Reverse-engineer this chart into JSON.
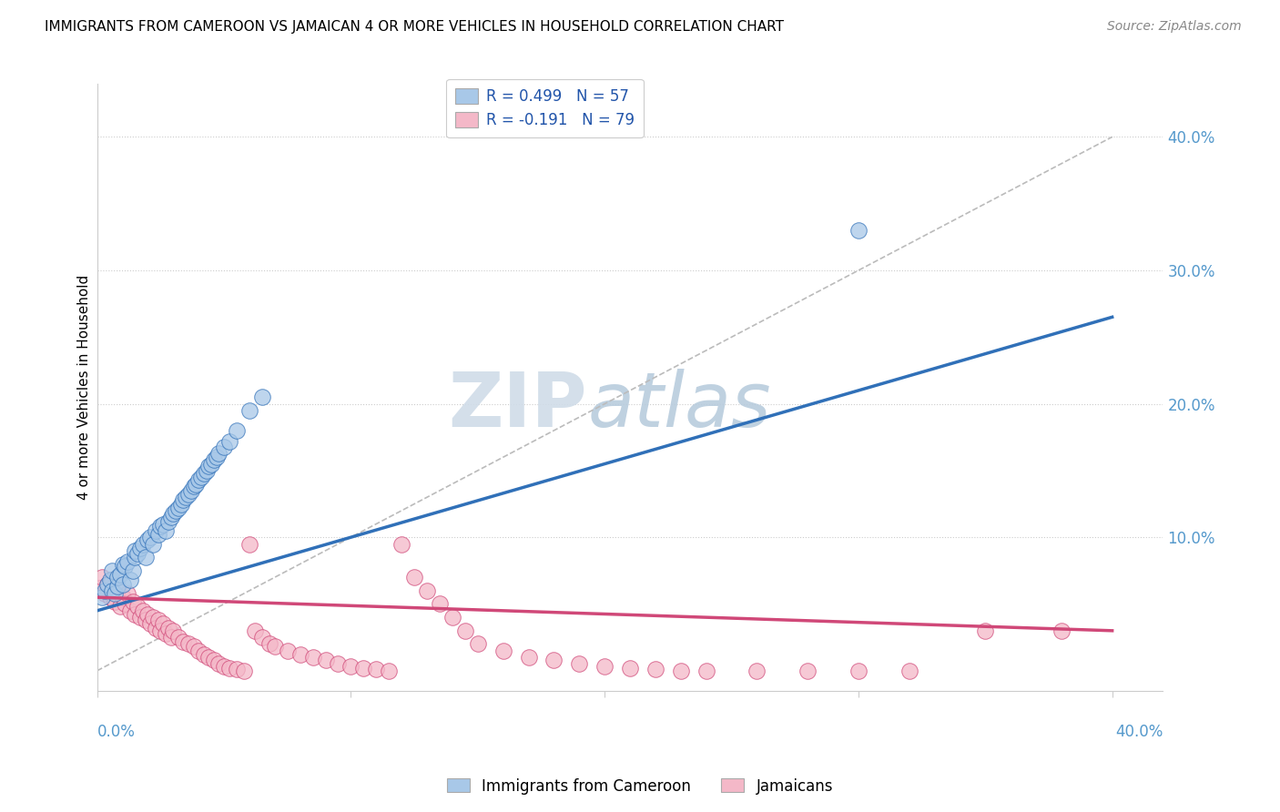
{
  "title": "IMMIGRANTS FROM CAMEROON VS JAMAICAN 4 OR MORE VEHICLES IN HOUSEHOLD CORRELATION CHART",
  "source": "Source: ZipAtlas.com",
  "ylabel": "4 or more Vehicles in Household",
  "color1": "#a8c8e8",
  "color2": "#f4b8c8",
  "line_color1": "#3070b8",
  "line_color2": "#d04878",
  "trendline_color_dashed": "#bbbbbb",
  "watermark_zip": "ZIP",
  "watermark_atlas": "atlas",
  "legend_label1": "R = 0.499   N = 57",
  "legend_label2": "R = -0.191   N = 79",
  "scatter_label1": "Immigrants from Cameroon",
  "scatter_label2": "Jamaicans",
  "xlim": [
    0.0,
    0.42
  ],
  "ylim": [
    -0.01,
    0.44
  ],
  "blue_x": [
    0.002,
    0.003,
    0.004,
    0.005,
    0.006,
    0.006,
    0.007,
    0.008,
    0.008,
    0.009,
    0.01,
    0.01,
    0.011,
    0.012,
    0.013,
    0.014,
    0.015,
    0.015,
    0.016,
    0.017,
    0.018,
    0.019,
    0.02,
    0.021,
    0.022,
    0.023,
    0.024,
    0.025,
    0.026,
    0.027,
    0.028,
    0.029,
    0.03,
    0.031,
    0.032,
    0.033,
    0.034,
    0.035,
    0.036,
    0.037,
    0.038,
    0.039,
    0.04,
    0.041,
    0.042,
    0.043,
    0.044,
    0.045,
    0.046,
    0.047,
    0.048,
    0.05,
    0.052,
    0.055,
    0.06,
    0.065,
    0.3
  ],
  "blue_y": [
    0.055,
    0.06,
    0.065,
    0.068,
    0.06,
    0.075,
    0.058,
    0.063,
    0.07,
    0.072,
    0.065,
    0.08,
    0.078,
    0.082,
    0.068,
    0.075,
    0.085,
    0.09,
    0.088,
    0.092,
    0.095,
    0.085,
    0.098,
    0.1,
    0.095,
    0.105,
    0.102,
    0.108,
    0.11,
    0.105,
    0.112,
    0.115,
    0.118,
    0.12,
    0.122,
    0.125,
    0.128,
    0.13,
    0.132,
    0.135,
    0.138,
    0.14,
    0.143,
    0.145,
    0.148,
    0.15,
    0.153,
    0.155,
    0.158,
    0.16,
    0.163,
    0.168,
    0.172,
    0.18,
    0.195,
    0.205,
    0.33
  ],
  "pink_x": [
    0.001,
    0.002,
    0.003,
    0.004,
    0.005,
    0.006,
    0.007,
    0.008,
    0.009,
    0.01,
    0.011,
    0.012,
    0.013,
    0.014,
    0.015,
    0.016,
    0.017,
    0.018,
    0.019,
    0.02,
    0.021,
    0.022,
    0.023,
    0.024,
    0.025,
    0.026,
    0.027,
    0.028,
    0.029,
    0.03,
    0.032,
    0.034,
    0.036,
    0.038,
    0.04,
    0.042,
    0.044,
    0.046,
    0.048,
    0.05,
    0.052,
    0.055,
    0.058,
    0.06,
    0.062,
    0.065,
    0.068,
    0.07,
    0.075,
    0.08,
    0.085,
    0.09,
    0.095,
    0.1,
    0.105,
    0.11,
    0.115,
    0.12,
    0.125,
    0.13,
    0.135,
    0.14,
    0.145,
    0.15,
    0.16,
    0.17,
    0.18,
    0.19,
    0.2,
    0.21,
    0.22,
    0.23,
    0.24,
    0.26,
    0.28,
    0.3,
    0.32,
    0.35,
    0.38
  ],
  "pink_y": [
    0.062,
    0.07,
    0.058,
    0.065,
    0.055,
    0.068,
    0.052,
    0.06,
    0.048,
    0.055,
    0.05,
    0.058,
    0.045,
    0.052,
    0.042,
    0.048,
    0.04,
    0.045,
    0.038,
    0.042,
    0.035,
    0.04,
    0.032,
    0.038,
    0.03,
    0.035,
    0.028,
    0.032,
    0.025,
    0.03,
    0.025,
    0.022,
    0.02,
    0.018,
    0.015,
    0.012,
    0.01,
    0.008,
    0.005,
    0.003,
    0.002,
    0.001,
    0.0,
    0.095,
    0.03,
    0.025,
    0.02,
    0.018,
    0.015,
    0.012,
    0.01,
    0.008,
    0.005,
    0.003,
    0.002,
    0.001,
    0.0,
    0.095,
    0.07,
    0.06,
    0.05,
    0.04,
    0.03,
    0.02,
    0.015,
    0.01,
    0.008,
    0.005,
    0.003,
    0.002,
    0.001,
    0.0,
    0.0,
    0.0,
    0.0,
    0.0,
    0.0,
    0.03,
    0.03
  ],
  "blue_trend_x0": 0.0,
  "blue_trend_y0": 0.05,
  "blue_trend_x1": 0.3,
  "blue_trend_y1": 0.205,
  "pink_trend_x0": 0.0,
  "pink_trend_y0": 0.055,
  "pink_trend_x1": 0.4,
  "pink_trend_y1": 0.03
}
